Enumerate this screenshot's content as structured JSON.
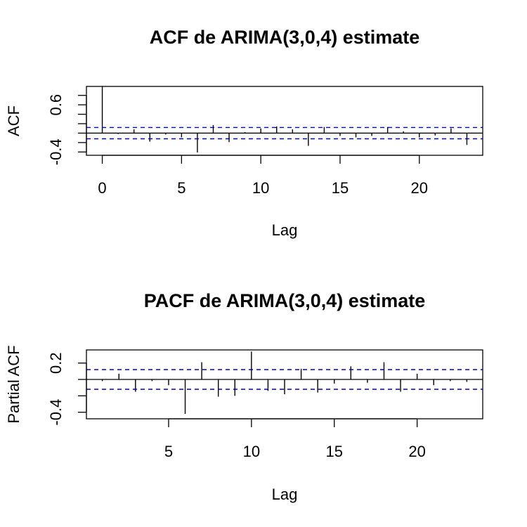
{
  "chart_data": [
    {
      "type": "bar",
      "title": "ACF de ARIMA(3,0,4) estimate",
      "xlabel": "Lag",
      "ylabel": "ACF",
      "xlim": [
        -1,
        24
      ],
      "ylim": [
        -0.47,
        0.99
      ],
      "x_ticks": [
        0,
        5,
        10,
        15,
        20
      ],
      "y_ticks": [
        -0.4,
        -0.2,
        0,
        0.2,
        0.4,
        0.6,
        0.8
      ],
      "y_tick_labels": [
        {
          "value": -0.4,
          "text": "-0.4"
        },
        {
          "value": 0.6,
          "text": "0.6"
        }
      ],
      "confidence_band": 0.12,
      "lags": [
        0,
        1,
        2,
        3,
        4,
        5,
        6,
        7,
        8,
        9,
        10,
        11,
        12,
        13,
        14,
        15,
        16,
        17,
        18,
        19,
        20,
        21,
        22,
        23
      ],
      "values": [
        1.0,
        -0.02,
        0.08,
        -0.18,
        -0.03,
        -0.09,
        -0.41,
        0.17,
        -0.19,
        0.02,
        0.1,
        0.14,
        0.08,
        -0.27,
        0.13,
        -0.06,
        -0.09,
        -0.06,
        0.13,
        0.04,
        -0.09,
        -0.05,
        0.1,
        -0.25
      ],
      "colors": {
        "spikes": "#000000",
        "confidence": "#0000cc"
      }
    },
    {
      "type": "bar",
      "title": "PACF de ARIMA(3,0,4) estimate",
      "xlabel": "Lag",
      "ylabel": "Partial ACF",
      "xlim": [
        0.04,
        23.96
      ],
      "ylim": [
        -0.48,
        0.36
      ],
      "x_ticks": [
        5,
        10,
        15,
        20
      ],
      "y_ticks": [
        -0.4,
        -0.2,
        0,
        0.2
      ],
      "y_tick_labels": [
        {
          "value": -0.4,
          "text": "-0.4"
        },
        {
          "value": 0.2,
          "text": "0.2"
        }
      ],
      "confidence_band": 0.12,
      "lags": [
        1,
        2,
        3,
        4,
        5,
        6,
        7,
        8,
        9,
        10,
        11,
        12,
        13,
        14,
        15,
        16,
        17,
        18,
        19,
        20,
        21,
        22,
        23
      ],
      "values": [
        -0.02,
        0.07,
        -0.15,
        -0.02,
        -0.07,
        -0.42,
        0.21,
        -0.21,
        -0.2,
        0.34,
        -0.14,
        -0.18,
        0.13,
        -0.16,
        -0.05,
        0.16,
        -0.04,
        0.21,
        -0.15,
        0.07,
        -0.07,
        -0.02,
        -0.03
      ],
      "colors": {
        "spikes": "#000000",
        "confidence": "#0000cc"
      }
    }
  ]
}
